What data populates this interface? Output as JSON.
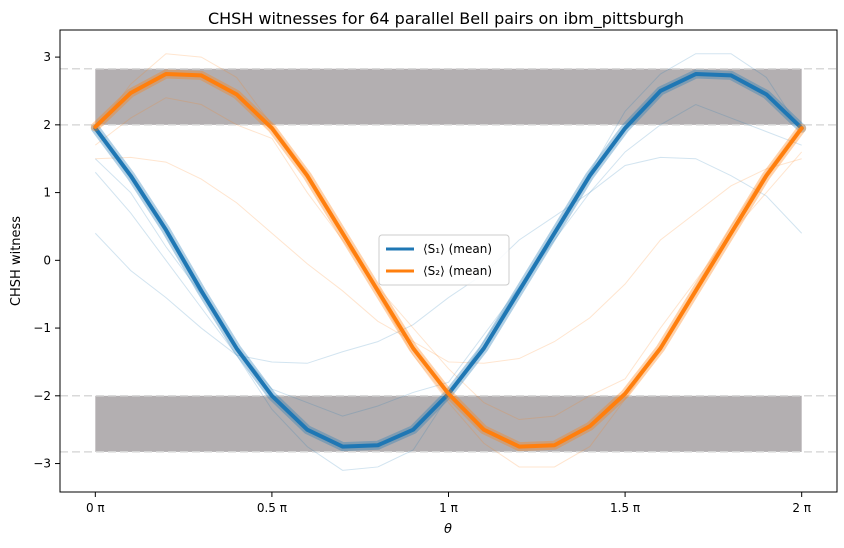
{
  "chart_data": {
    "type": "line",
    "title": "CHSH witnesses for 64 parallel Bell pairs on ibm_pittsburgh",
    "xlabel": "θ",
    "ylabel": "CHSH witness",
    "xlim": [
      -0.1,
      2.1
    ],
    "ylim": [
      -3.42,
      3.4
    ],
    "x_unit": "π",
    "x_ticks": [
      0,
      0.5,
      1,
      1.5,
      2
    ],
    "x_tick_labels": [
      "0 π",
      "0.5 π",
      "1 π",
      "1.5 π",
      "2 π"
    ],
    "y_ticks": [
      -3,
      -2,
      -1,
      0,
      1,
      2,
      3
    ],
    "y_tick_labels": [
      "−3",
      "−2",
      "−1",
      "0",
      "1",
      "2",
      "3"
    ],
    "shaded_regions": [
      {
        "y_from": 2.0,
        "y_to": 2.828,
        "color": "#b3afb1"
      },
      {
        "y_from": -2.828,
        "y_to": -2.0,
        "color": "#b3afb1"
      }
    ],
    "reference_lines": [
      2.828,
      2.0,
      -2.0,
      -2.828
    ],
    "legend": {
      "placement": "center"
    },
    "x": [
      0,
      0.1,
      0.2,
      0.3,
      0.4,
      0.5,
      0.6,
      0.7,
      0.8,
      0.9,
      1.0,
      1.1,
      1.2,
      1.3,
      1.4,
      1.5,
      1.6,
      1.7,
      1.8,
      1.9,
      2.0
    ],
    "series": [
      {
        "name": "⟨S₁⟩ (mean)",
        "color": "#1f77b4",
        "values": [
          1.95,
          1.25,
          0.45,
          -0.45,
          -1.3,
          -2.0,
          -2.5,
          -2.75,
          -2.73,
          -2.5,
          -1.97,
          -1.3,
          -0.45,
          0.4,
          1.25,
          1.95,
          2.5,
          2.75,
          2.73,
          2.45,
          1.95
        ]
      },
      {
        "name": "⟨S₂⟩ (mean)",
        "color": "#ff7f0e",
        "values": [
          1.97,
          2.47,
          2.75,
          2.73,
          2.45,
          1.95,
          1.25,
          0.4,
          -0.45,
          -1.3,
          -1.97,
          -2.5,
          -2.75,
          -2.73,
          -2.45,
          -1.97,
          -1.3,
          -0.45,
          0.4,
          1.25,
          1.95
        ]
      }
    ],
    "faint_series": [
      {
        "color": "#1f77b4",
        "values": [
          0.4,
          -0.15,
          -0.55,
          -1.0,
          -1.4,
          -1.5,
          -1.52,
          -1.35,
          -1.2,
          -0.95,
          -0.55,
          -0.2,
          0.3,
          0.65,
          1.0,
          1.4,
          1.52,
          1.5,
          1.25,
          0.95,
          0.4
        ]
      },
      {
        "color": "#1f77b4",
        "values": [
          1.3,
          0.7,
          0.0,
          -0.7,
          -1.4,
          -2.2,
          -2.75,
          -3.1,
          -3.05,
          -2.8,
          -2.0,
          -1.2,
          -0.4,
          0.4,
          1.3,
          2.2,
          2.75,
          3.05,
          3.05,
          2.7,
          1.9
        ]
      },
      {
        "color": "#1f77b4",
        "values": [
          1.5,
          1.0,
          0.2,
          -0.5,
          -1.3,
          -1.9,
          -2.1,
          -2.3,
          -2.15,
          -1.95,
          -1.8,
          -1.1,
          -0.4,
          0.3,
          1.0,
          1.6,
          2.0,
          2.3,
          2.1,
          1.9,
          1.7
        ]
      },
      {
        "color": "#ff7f0e",
        "values": [
          1.5,
          1.52,
          1.45,
          1.2,
          0.85,
          0.4,
          -0.05,
          -0.45,
          -0.9,
          -1.2,
          -1.5,
          -1.52,
          -1.45,
          -1.2,
          -0.85,
          -0.35,
          0.3,
          0.7,
          1.1,
          1.35,
          1.5
        ]
      },
      {
        "color": "#ff7f0e",
        "values": [
          1.9,
          2.6,
          3.05,
          3.0,
          2.7,
          2.0,
          1.3,
          0.4,
          -0.5,
          -1.4,
          -2.1,
          -2.7,
          -3.05,
          -3.05,
          -2.75,
          -2.05,
          -1.3,
          -0.4,
          0.5,
          1.3,
          2.0
        ]
      },
      {
        "color": "#ff7f0e",
        "values": [
          1.7,
          2.1,
          2.4,
          2.3,
          2.0,
          1.8,
          1.0,
          0.3,
          -0.4,
          -1.0,
          -1.6,
          -2.1,
          -2.35,
          -2.3,
          -2.0,
          -1.75,
          -1.0,
          -0.3,
          0.4,
          1.0,
          1.6
        ]
      }
    ]
  }
}
